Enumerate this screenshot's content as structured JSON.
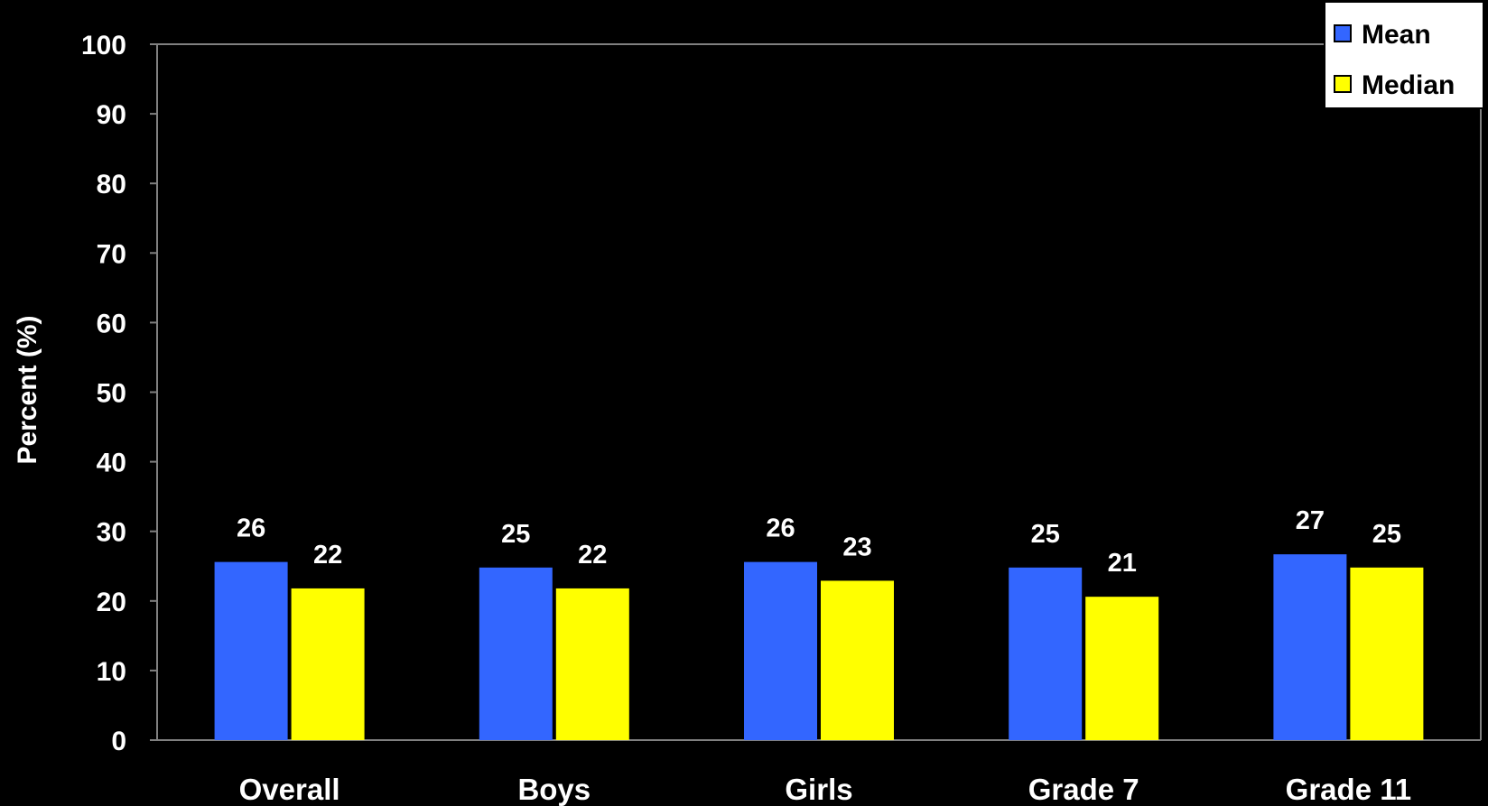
{
  "colors": {
    "background": "#000000",
    "mean": "#3366ff",
    "median": "#ffff00",
    "axis": "#808080",
    "text": "#ffffff"
  },
  "chart_data": {
    "type": "bar",
    "title": "",
    "xlabel": "",
    "ylabel": "Percent (%)",
    "ylim": [
      0,
      100
    ],
    "yticks": [
      "0",
      "10",
      "20",
      "30",
      "40",
      "50",
      "60",
      "70",
      "80",
      "90",
      "100"
    ],
    "grid": false,
    "legend_position": "top-right",
    "categories": [
      "Overall",
      "Boys",
      "Girls",
      "Grade 7",
      "Grade 11"
    ],
    "series": [
      {
        "name": "Mean",
        "values": [
          25.6,
          24.8,
          25.6,
          24.8,
          26.7
        ],
        "labels": [
          "26",
          "25",
          "26",
          "25",
          "27"
        ]
      },
      {
        "name": "Median",
        "values": [
          21.8,
          21.8,
          22.9,
          20.6,
          24.8
        ],
        "labels": [
          "22",
          "22",
          "23",
          "21",
          "25"
        ]
      }
    ]
  }
}
